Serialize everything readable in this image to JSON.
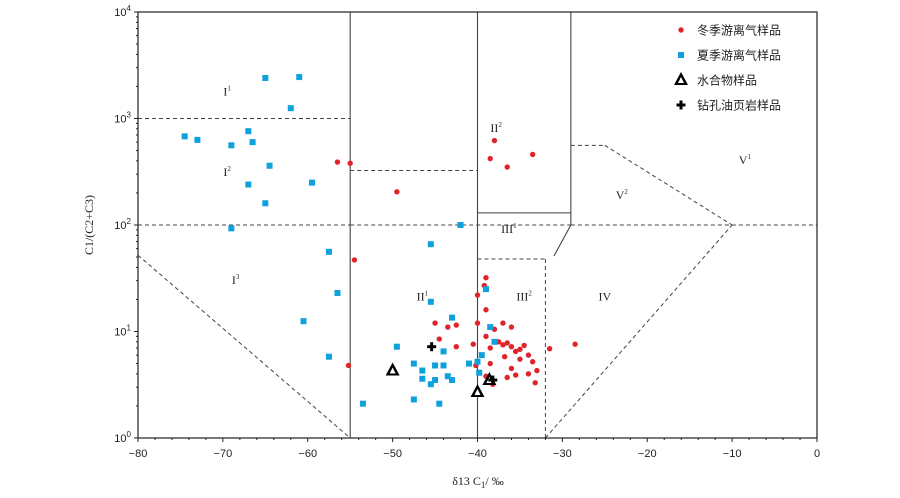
{
  "chart_data": {
    "type": "scatter",
    "x_axis": {
      "label_main": "δ13 C",
      "label_sub": "1",
      "label_unit": "/ ‰",
      "min": -80,
      "max": 0,
      "ticks": [
        -80,
        -70,
        -60,
        -50,
        -40,
        -30,
        -20,
        -10,
        0
      ],
      "tick_labels": [
        "−80",
        "−70",
        "−60",
        "−50",
        "−40",
        "−30",
        "−20",
        "−10",
        "0"
      ]
    },
    "y_axis": {
      "label": "C1/(C2+C3)",
      "scale": "log",
      "min": 1,
      "max": 10000,
      "ticks": [
        1,
        10,
        100,
        1000,
        10000
      ],
      "tick_labels": [
        {
          "base": "10",
          "exp": "0"
        },
        {
          "base": "10",
          "exp": "1"
        },
        {
          "base": "10",
          "exp": "2"
        },
        {
          "base": "10",
          "exp": "3"
        },
        {
          "base": "10",
          "exp": "4"
        }
      ]
    },
    "grid": false,
    "legend_position": "top-right",
    "series": [
      {
        "name": "冬季游离气样品",
        "marker": "circle",
        "color": "#e0242b",
        "points": [
          [
            -56.5,
            390
          ],
          [
            -55,
            380
          ],
          [
            -49.5,
            205
          ],
          [
            -54.5,
            47
          ],
          [
            -55.2,
            4.8
          ],
          [
            -38,
            620
          ],
          [
            -38.5,
            420
          ],
          [
            -33.5,
            460
          ],
          [
            -36.5,
            350
          ],
          [
            -40,
            22
          ],
          [
            -39,
            32
          ],
          [
            -39.2,
            27
          ],
          [
            -39,
            16
          ],
          [
            -45,
            12
          ],
          [
            -43.5,
            11
          ],
          [
            -42.5,
            11.5
          ],
          [
            -40,
            12
          ],
          [
            -37,
            12
          ],
          [
            -36,
            11
          ],
          [
            -38,
            10.5
          ],
          [
            -40.5,
            7.6
          ],
          [
            -39,
            9
          ],
          [
            -38.5,
            7
          ],
          [
            -37.5,
            8
          ],
          [
            -37,
            7.5
          ],
          [
            -36.5,
            7.8
          ],
          [
            -36,
            7.2
          ],
          [
            -35,
            6.8
          ],
          [
            -34.5,
            7.4
          ],
          [
            -34,
            6
          ],
          [
            -35.5,
            6.5
          ],
          [
            -36.8,
            5.8
          ],
          [
            -33.5,
            5.2
          ],
          [
            -35,
            5.5
          ],
          [
            -38.5,
            5
          ],
          [
            -36,
            4.5
          ],
          [
            -33,
            4.3
          ],
          [
            -34,
            4
          ],
          [
            -35.5,
            3.9
          ],
          [
            -39,
            3.8
          ],
          [
            -38.2,
            3.2
          ],
          [
            -36.5,
            3.7
          ],
          [
            -33.2,
            3.3
          ],
          [
            -40.2,
            4.8
          ],
          [
            -31.5,
            6.9
          ],
          [
            -28.5,
            7.6
          ],
          [
            -42.5,
            7.2
          ],
          [
            -44.5,
            8.5
          ]
        ]
      },
      {
        "name": "夏季游离气样品",
        "marker": "square",
        "color": "#0ea1dc",
        "points": [
          [
            -65,
            2400
          ],
          [
            -61,
            2450
          ],
          [
            -62,
            1250
          ],
          [
            -67,
            760
          ],
          [
            -74.5,
            680
          ],
          [
            -73,
            630
          ],
          [
            -69,
            560
          ],
          [
            -66.5,
            600
          ],
          [
            -64.5,
            360
          ],
          [
            -67,
            240
          ],
          [
            -65,
            160
          ],
          [
            -59.5,
            250
          ],
          [
            -69,
            93
          ],
          [
            -57.5,
            56
          ],
          [
            -56.5,
            23
          ],
          [
            -60.5,
            12.5
          ],
          [
            -57.5,
            5.8
          ],
          [
            -49.5,
            7.2
          ],
          [
            -53.5,
            2.1
          ],
          [
            -47.5,
            2.3
          ],
          [
            -46.5,
            3.6
          ],
          [
            -45.5,
            3.2
          ],
          [
            -45,
            3.5
          ],
          [
            -44.5,
            2.1
          ],
          [
            -44,
            4.8
          ],
          [
            -43.5,
            3.8
          ],
          [
            -43,
            3.5
          ],
          [
            -44,
            6.5
          ],
          [
            -45,
            4.8
          ],
          [
            -46.5,
            4.3
          ],
          [
            -45.5,
            19
          ],
          [
            -43,
            13.5
          ],
          [
            -42,
            100
          ],
          [
            -45.5,
            66
          ],
          [
            -41,
            5
          ],
          [
            -39.5,
            6
          ],
          [
            -39,
            25
          ],
          [
            -38.5,
            11
          ],
          [
            -38,
            8
          ],
          [
            -40,
            5.2
          ],
          [
            -39.8,
            4.1
          ],
          [
            -47.5,
            5
          ]
        ]
      },
      {
        "name": "水合物样品",
        "marker": "triangle",
        "color": "#000000",
        "points": [
          [
            -50,
            4.3
          ],
          [
            -40,
            2.7
          ],
          [
            -38.6,
            3.5
          ]
        ]
      },
      {
        "name": "钻孔油页岩样品",
        "marker": "cross",
        "color": "#000000",
        "points": [
          [
            -45.4,
            7.2
          ],
          [
            -38.2,
            3.5
          ]
        ]
      }
    ],
    "zone_labels": [
      {
        "main": "I",
        "sup": "1",
        "x": -69.5,
        "y": 1650
      },
      {
        "main": "I",
        "sup": "2",
        "x": -69.5,
        "y": 290
      },
      {
        "main": "I",
        "sup": "3",
        "x": -68.5,
        "y": 28
      },
      {
        "main": "II",
        "sup": "2",
        "x": -37.8,
        "y": 750
      },
      {
        "main": "II",
        "sup": "1",
        "x": -46.5,
        "y": 19.5
      },
      {
        "main": "III",
        "sup": "1",
        "x": -36.3,
        "y": 84
      },
      {
        "main": "III",
        "sup": "2",
        "x": -34.5,
        "y": 19.5
      },
      {
        "main": "IV",
        "sup": "",
        "x": -25,
        "y": 19.5
      },
      {
        "main": "V",
        "sup": "2",
        "x": -23,
        "y": 175
      },
      {
        "main": "V",
        "sup": "1",
        "x": -8.5,
        "y": 375
      }
    ],
    "boundaries": {
      "solid": [
        [
          [
            -55,
            1
          ],
          [
            -55,
            10000
          ]
        ],
        [
          [
            -40,
            10000
          ],
          [
            -40,
            1
          ]
        ],
        [
          [
            -29,
            10000
          ],
          [
            -29,
            100
          ]
        ],
        [
          [
            -40,
            130
          ],
          [
            -29,
            130
          ]
        ],
        [
          [
            -29,
            100
          ],
          [
            -31,
            51
          ]
        ]
      ],
      "dashed": [
        [
          [
            -80,
            1000
          ],
          [
            -55,
            1000
          ]
        ],
        [
          [
            -80,
            100
          ],
          [
            -55,
            100
          ]
        ],
        [
          [
            -55,
            100
          ],
          [
            -29,
            100
          ]
        ],
        [
          [
            -55,
            325
          ],
          [
            -40,
            325
          ]
        ],
        [
          [
            -80,
            52
          ],
          [
            -55,
            1
          ]
        ],
        [
          [
            -40,
            48
          ],
          [
            -32,
            48
          ]
        ],
        [
          [
            -32,
            48
          ],
          [
            -32,
            1
          ]
        ],
        [
          [
            -32,
            1
          ],
          [
            -10,
            100
          ]
        ],
        [
          [
            -29,
            100
          ],
          [
            0,
            100
          ]
        ],
        [
          [
            -29,
            560
          ],
          [
            -25,
            560
          ]
        ],
        [
          [
            -25,
            560
          ],
          [
            -10,
            100
          ]
        ]
      ]
    }
  }
}
